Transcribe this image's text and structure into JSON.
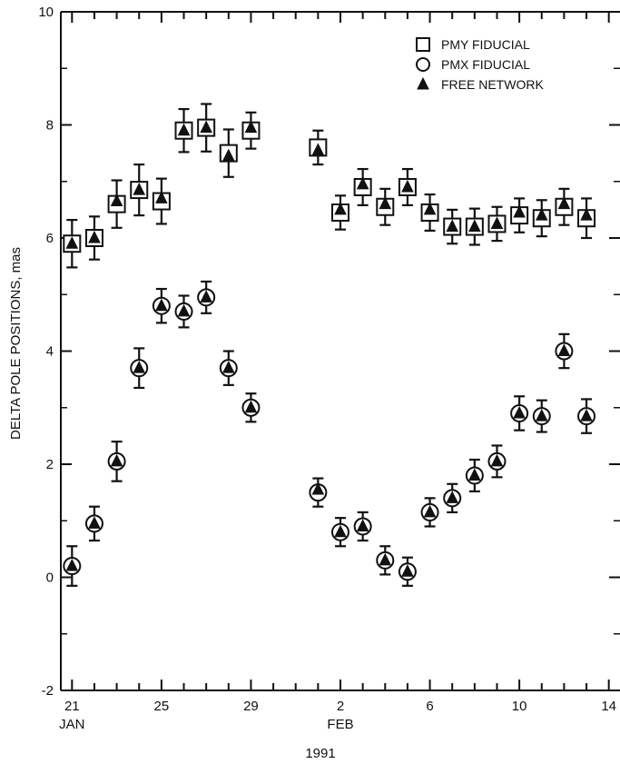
{
  "chart_data": {
    "type": "scatter",
    "title": "",
    "ylabel": "DELTA POLE POSITIONS, mas",
    "xlabel": "1991",
    "ylim": [
      -2,
      10
    ],
    "xlim": [
      20.5,
      45.5
    ],
    "y_ticks": [
      -2,
      0,
      2,
      4,
      6,
      8,
      10
    ],
    "y_tick_labels": [
      "-2",
      "0",
      "2",
      "4",
      "6",
      "8",
      "10"
    ],
    "x_ticks": [
      21,
      25,
      29,
      33,
      37,
      41,
      45
    ],
    "x_tick_labels": [
      "21",
      "25",
      "29",
      "2",
      "6",
      "10",
      "14"
    ],
    "x_month_labels": [
      {
        "x": 21,
        "label": "JAN"
      },
      {
        "x": 33,
        "label": "FEB"
      }
    ],
    "x_unit": "day of Jan 1991 (Feb 1 = 32)",
    "grid": false,
    "legend_position": "top-right",
    "series": [
      {
        "name": "PMY FIDUCIAL",
        "marker": "square",
        "x": [
          21,
          22,
          23,
          24,
          25,
          26,
          27,
          28,
          29,
          32,
          33,
          34,
          35,
          36,
          37,
          38,
          39,
          40,
          41,
          42,
          43,
          44
        ],
        "y": [
          5.9,
          6.0,
          6.6,
          6.85,
          6.65,
          7.9,
          7.95,
          7.5,
          7.9,
          7.6,
          6.45,
          6.9,
          6.55,
          6.9,
          6.45,
          6.2,
          6.2,
          6.25,
          6.4,
          6.35,
          6.55,
          6.35
        ],
        "err": [
          0.42,
          0.38,
          0.42,
          0.45,
          0.4,
          0.38,
          0.42,
          0.42,
          0.32,
          0.3,
          0.3,
          0.32,
          0.32,
          0.32,
          0.32,
          0.3,
          0.32,
          0.3,
          0.3,
          0.32,
          0.32,
          0.35
        ]
      },
      {
        "name": "PMX FIDUCIAL",
        "marker": "circle",
        "x": [
          21,
          22,
          23,
          24,
          25,
          26,
          27,
          28,
          29,
          32,
          33,
          34,
          35,
          36,
          37,
          38,
          39,
          40,
          41,
          42,
          43,
          44
        ],
        "y": [
          0.2,
          0.95,
          2.05,
          3.7,
          4.8,
          4.7,
          4.95,
          3.7,
          3.0,
          1.5,
          0.8,
          0.9,
          0.3,
          0.1,
          1.15,
          1.4,
          1.8,
          2.05,
          2.9,
          2.85,
          4.0,
          2.85
        ],
        "err": [
          0.35,
          0.3,
          0.35,
          0.35,
          0.3,
          0.28,
          0.28,
          0.3,
          0.25,
          0.25,
          0.25,
          0.25,
          0.25,
          0.25,
          0.25,
          0.25,
          0.28,
          0.28,
          0.3,
          0.28,
          0.3,
          0.3
        ]
      },
      {
        "name": "FREE NETWORK",
        "marker": "triangle",
        "x": [
          21,
          22,
          23,
          24,
          25,
          26,
          27,
          28,
          29,
          32,
          33,
          34,
          35,
          36,
          37,
          38,
          39,
          40,
          41,
          42,
          43,
          44,
          21,
          22,
          23,
          24,
          25,
          26,
          27,
          28,
          29,
          32,
          33,
          34,
          35,
          36,
          37,
          38,
          39,
          40,
          41,
          42,
          43,
          44
        ],
        "y": [
          5.9,
          6.0,
          6.65,
          6.85,
          6.7,
          7.9,
          7.95,
          7.45,
          7.95,
          7.55,
          6.5,
          6.95,
          6.6,
          6.9,
          6.5,
          6.2,
          6.2,
          6.25,
          6.45,
          6.4,
          6.6,
          6.4,
          0.2,
          0.95,
          2.05,
          3.7,
          4.8,
          4.7,
          4.95,
          3.7,
          3.0,
          1.55,
          0.8,
          0.9,
          0.3,
          0.1,
          1.15,
          1.4,
          1.8,
          2.05,
          2.9,
          2.85,
          4.0,
          2.85
        ]
      }
    ]
  }
}
